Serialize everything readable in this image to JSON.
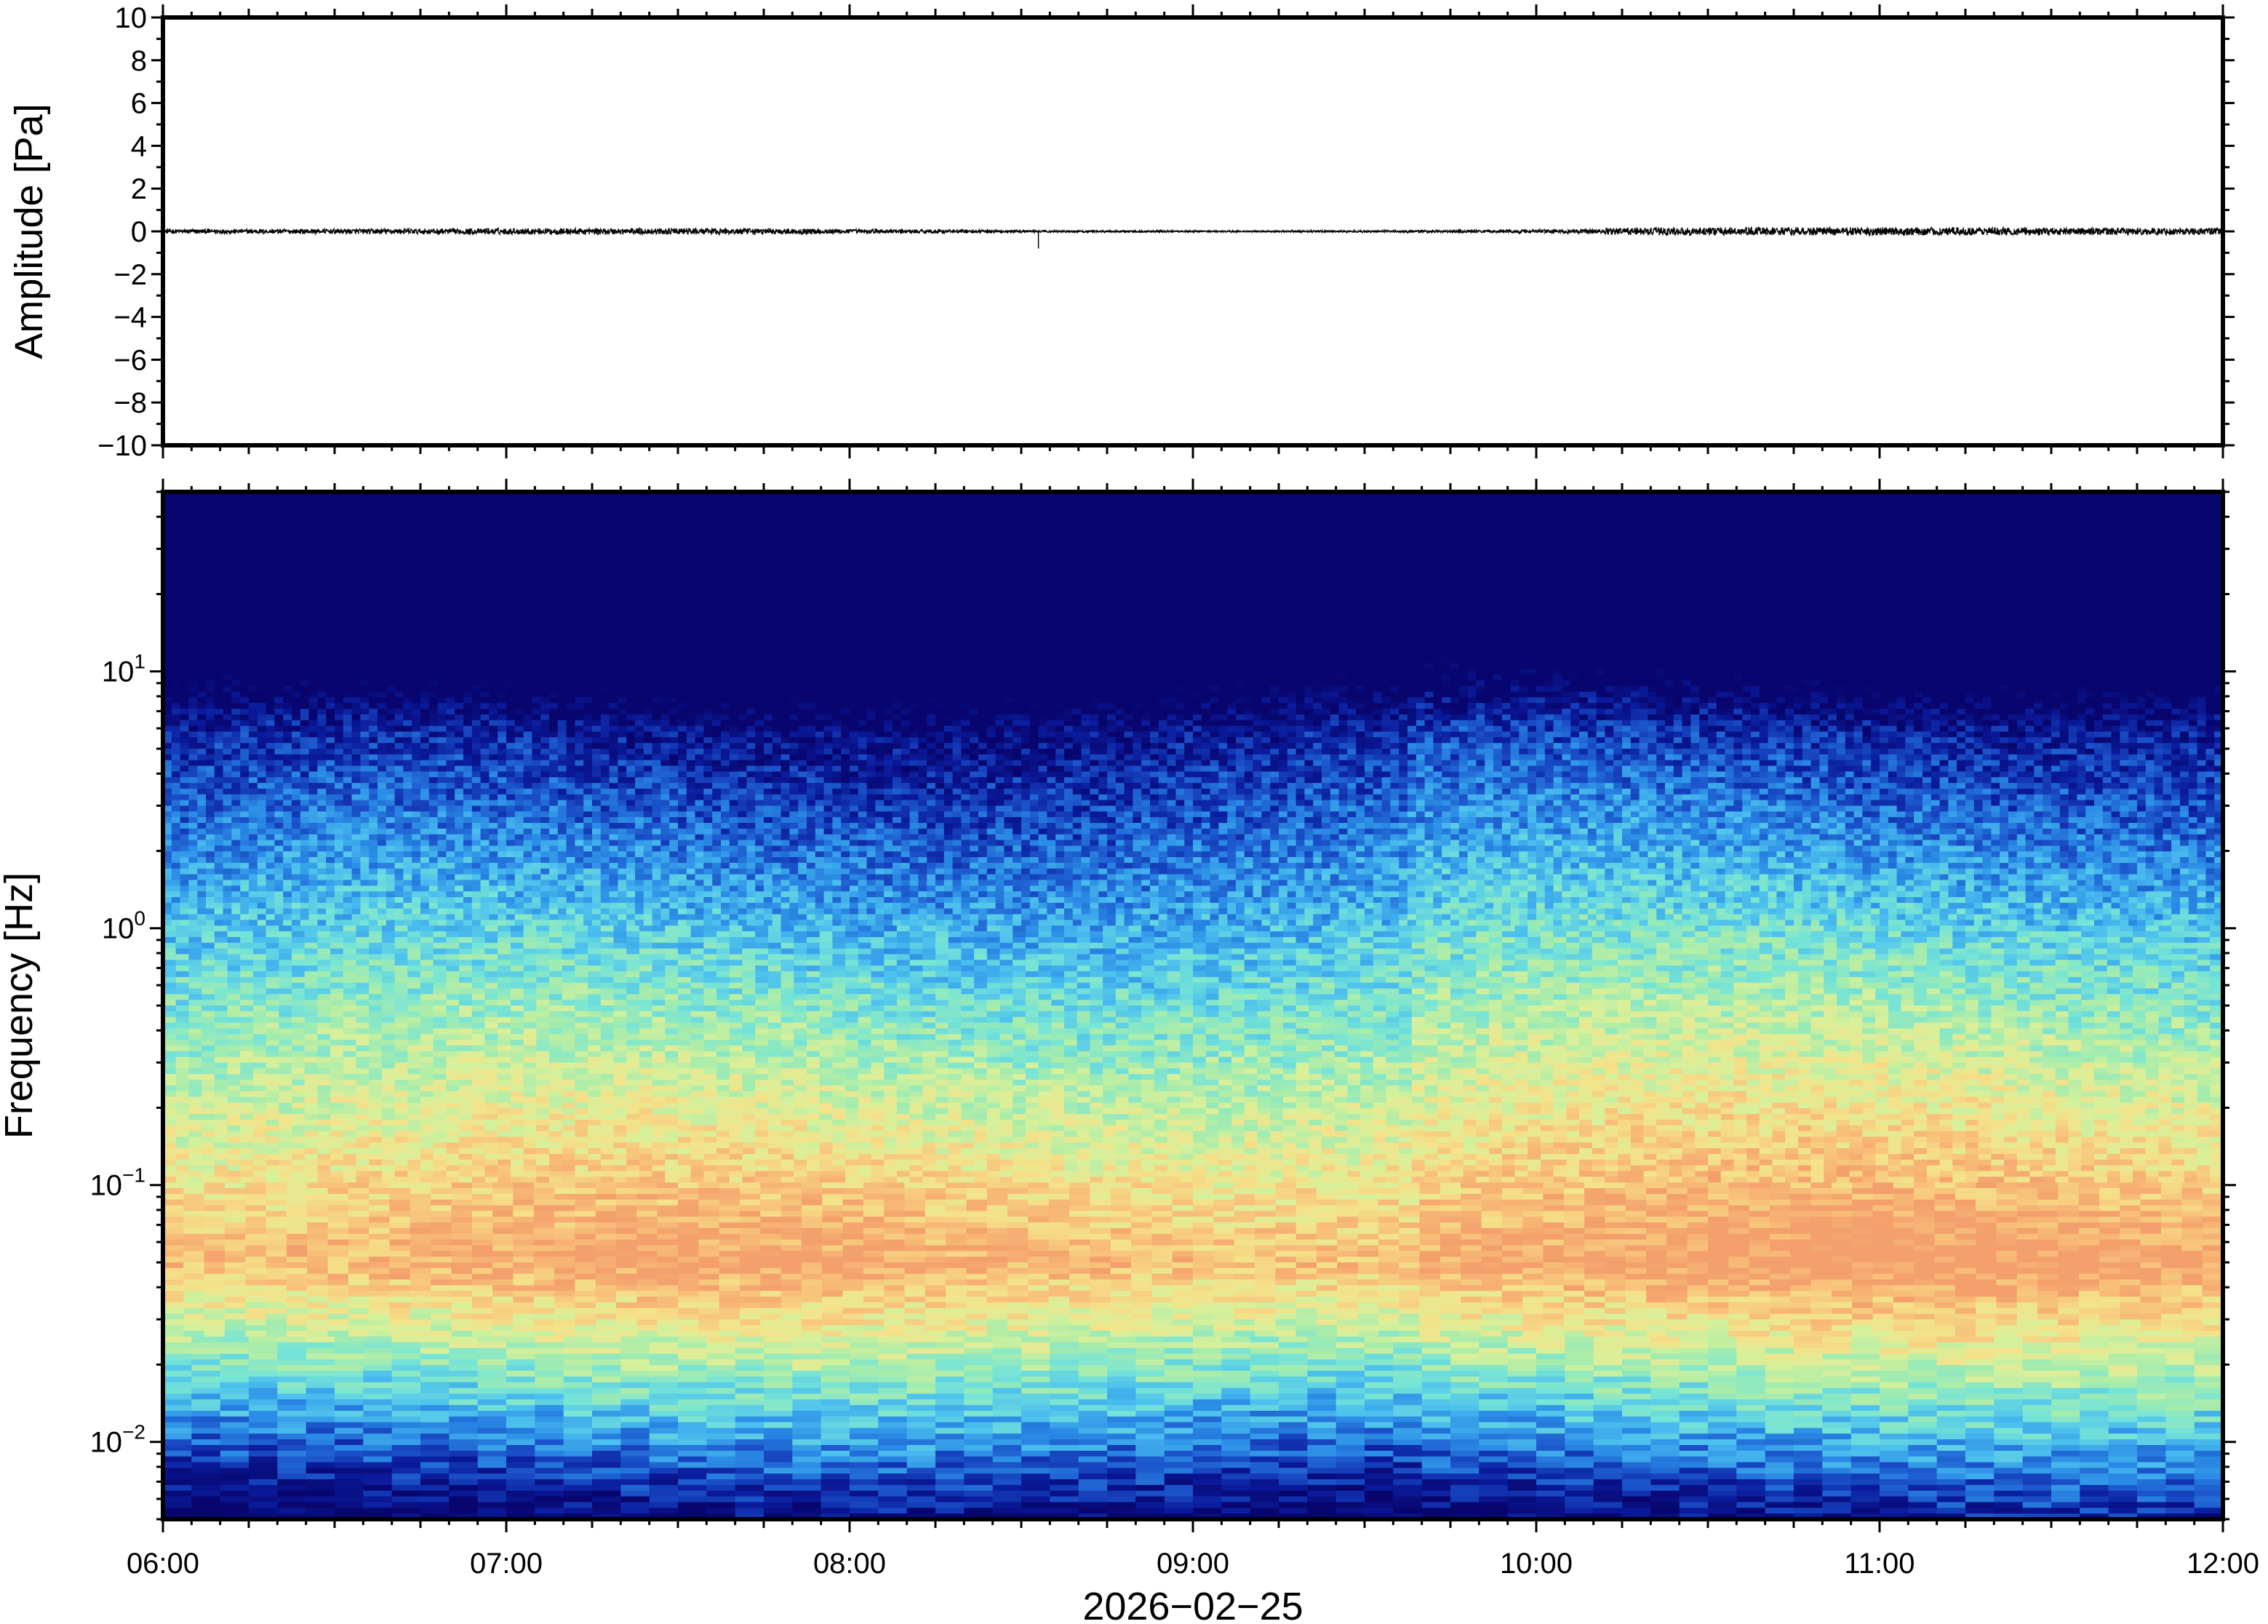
{
  "chart_data": [
    {
      "type": "line",
      "panel": "waveform",
      "ylabel": "Amplitude [Pa]",
      "ylim": [
        -10,
        10
      ],
      "yticks": [
        {
          "value": 10,
          "label": "10"
        },
        {
          "value": 8,
          "label": "8"
        },
        {
          "value": 6,
          "label": "6"
        },
        {
          "value": 4,
          "label": "4"
        },
        {
          "value": 2,
          "label": "2"
        },
        {
          "value": 0,
          "label": "0"
        },
        {
          "value": -2,
          "label": "−2"
        },
        {
          "value": -4,
          "label": "−4"
        },
        {
          "value": -6,
          "label": "−6"
        },
        {
          "value": -8,
          "label": "−8"
        },
        {
          "value": -10,
          "label": "−10"
        }
      ],
      "xlim": [
        "06:00",
        "12:00"
      ],
      "series": [
        {
          "values_description_free": true,
          "baseline": 0.0,
          "noise_amplitude": 0.15,
          "spike_time": "08:33",
          "spike_amplitude": -0.8
        }
      ],
      "line_color": "#000000",
      "grid": false
    },
    {
      "type": "heatmap",
      "panel": "spectrogram",
      "ylabel": "Frequency [Hz]",
      "yscale": "log",
      "ylim": [
        0.005,
        50
      ],
      "yticks": [
        {
          "value": 10,
          "base": "10",
          "exp": "1"
        },
        {
          "value": 1,
          "base": "10",
          "exp": "0"
        },
        {
          "value": 0.1,
          "base": "10",
          "exp": "−1"
        },
        {
          "value": 0.01,
          "base": "10",
          "exp": "−2"
        }
      ],
      "xlabel": "2026−02−25",
      "xlim": [
        "06:00",
        "12:00"
      ],
      "xticks": [
        "06:00",
        "07:00",
        "08:00",
        "09:00",
        "10:00",
        "11:00",
        "12:00"
      ],
      "colormap": [
        "#08066e",
        "#0a1a9a",
        "#1a50c8",
        "#2b8ce6",
        "#4cc0ee",
        "#76e4d6",
        "#a6ecac",
        "#d8f09a",
        "#f4e28a",
        "#f8c07a",
        "#f4a06c"
      ],
      "peak_frequency_hz": 0.05,
      "grid": false
    }
  ]
}
